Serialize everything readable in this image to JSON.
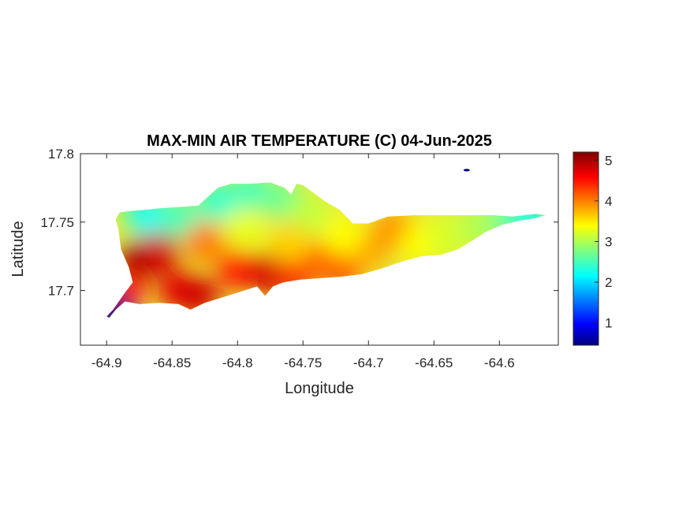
{
  "chart_data": {
    "type": "heatmap",
    "title": "MAX-MIN AIR TEMPERATURE (C) 04-Jun-2025",
    "xlabel": "Longitude",
    "ylabel": "Latitude",
    "xlim": [
      -64.92,
      -64.555
    ],
    "ylim": [
      17.66,
      17.8
    ],
    "xticks": [
      -64.9,
      -64.85,
      -64.8,
      -64.75,
      -64.7,
      -64.65,
      -64.6
    ],
    "xtick_labels": [
      "-64.9",
      "-64.85",
      "-64.8",
      "-64.75",
      "-64.7",
      "-64.65",
      "-64.6"
    ],
    "yticks": [
      17.7,
      17.75,
      17.8
    ],
    "ytick_labels": [
      "17.7",
      "17.75",
      "17.8"
    ],
    "colormap": "jet",
    "colorbar": {
      "min": 0.45,
      "max": 5.2,
      "ticks": [
        1,
        2,
        3,
        4,
        5
      ],
      "tick_labels": [
        "1",
        "2",
        "3",
        "4",
        "5"
      ]
    },
    "island_outline": [
      [
        -64.898,
        17.68
      ],
      [
        -64.893,
        17.686
      ],
      [
        -64.886,
        17.692
      ],
      [
        -64.875,
        17.69
      ],
      [
        -64.86,
        17.691
      ],
      [
        -64.845,
        17.69
      ],
      [
        -64.836,
        17.686
      ],
      [
        -64.825,
        17.691
      ],
      [
        -64.808,
        17.696
      ],
      [
        -64.795,
        17.7
      ],
      [
        -64.785,
        17.703
      ],
      [
        -64.779,
        17.696
      ],
      [
        -64.773,
        17.703
      ],
      [
        -64.765,
        17.706
      ],
      [
        -64.752,
        17.708
      ],
      [
        -64.738,
        17.709
      ],
      [
        -64.722,
        17.71
      ],
      [
        -64.705,
        17.712
      ],
      [
        -64.69,
        17.716
      ],
      [
        -64.675,
        17.721
      ],
      [
        -64.66,
        17.725
      ],
      [
        -64.645,
        17.726
      ],
      [
        -64.632,
        17.73
      ],
      [
        -64.62,
        17.737
      ],
      [
        -64.61,
        17.743
      ],
      [
        -64.598,
        17.748
      ],
      [
        -64.585,
        17.751
      ],
      [
        -64.572,
        17.753
      ],
      [
        -64.565,
        17.755
      ],
      [
        -64.572,
        17.756
      ],
      [
        -64.59,
        17.754
      ],
      [
        -64.605,
        17.755
      ],
      [
        -64.625,
        17.755
      ],
      [
        -64.645,
        17.755
      ],
      [
        -64.665,
        17.755
      ],
      [
        -64.685,
        17.754
      ],
      [
        -64.7,
        17.749
      ],
      [
        -64.712,
        17.749
      ],
      [
        -64.722,
        17.759
      ],
      [
        -64.733,
        17.765
      ],
      [
        -64.743,
        17.772
      ],
      [
        -64.75,
        17.777
      ],
      [
        -64.755,
        17.778
      ],
      [
        -64.759,
        17.77
      ],
      [
        -64.764,
        17.775
      ],
      [
        -64.775,
        17.779
      ],
      [
        -64.79,
        17.778
      ],
      [
        -64.805,
        17.778
      ],
      [
        -64.815,
        17.775
      ],
      [
        -64.83,
        17.762
      ],
      [
        -64.845,
        17.761
      ],
      [
        -64.86,
        17.76
      ],
      [
        -64.87,
        17.759
      ],
      [
        -64.883,
        17.758
      ],
      [
        -64.89,
        17.757
      ],
      [
        -64.893,
        17.752
      ],
      [
        -64.891,
        17.745
      ],
      [
        -64.889,
        17.73
      ],
      [
        -64.883,
        17.717
      ],
      [
        -64.88,
        17.706
      ],
      [
        -64.887,
        17.697
      ],
      [
        -64.895,
        17.686
      ],
      [
        -64.9,
        17.681
      ]
    ],
    "temperature_points": [
      {
        "lon": -64.875,
        "lat": 17.722,
        "value": 5.1
      },
      {
        "lon": -64.86,
        "lat": 17.728,
        "value": 4.8
      },
      {
        "lon": -64.845,
        "lat": 17.7,
        "value": 4.7
      },
      {
        "lon": -64.83,
        "lat": 17.696,
        "value": 4.8
      },
      {
        "lon": -64.885,
        "lat": 17.7,
        "value": 4.4
      },
      {
        "lon": -64.8,
        "lat": 17.715,
        "value": 4.5
      },
      {
        "lon": -64.775,
        "lat": 17.712,
        "value": 4.8
      },
      {
        "lon": -64.755,
        "lat": 17.713,
        "value": 4.6
      },
      {
        "lon": -64.735,
        "lat": 17.722,
        "value": 4.1
      },
      {
        "lon": -64.72,
        "lat": 17.716,
        "value": 4.2
      },
      {
        "lon": -64.7,
        "lat": 17.73,
        "value": 3.8
      },
      {
        "lon": -64.68,
        "lat": 17.745,
        "value": 3.9
      },
      {
        "lon": -64.66,
        "lat": 17.735,
        "value": 3.4
      },
      {
        "lon": -64.64,
        "lat": 17.74,
        "value": 3.2
      },
      {
        "lon": -64.615,
        "lat": 17.747,
        "value": 3.0
      },
      {
        "lon": -64.59,
        "lat": 17.752,
        "value": 2.6
      },
      {
        "lon": -64.575,
        "lat": 17.754,
        "value": 2.3
      },
      {
        "lon": -64.87,
        "lat": 17.755,
        "value": 2.2
      },
      {
        "lon": -64.845,
        "lat": 17.753,
        "value": 2.5
      },
      {
        "lon": -64.815,
        "lat": 17.765,
        "value": 2.4
      },
      {
        "lon": -64.79,
        "lat": 17.772,
        "value": 2.5
      },
      {
        "lon": -64.765,
        "lat": 17.767,
        "value": 2.7
      },
      {
        "lon": -64.745,
        "lat": 17.756,
        "value": 3.1
      },
      {
        "lon": -64.795,
        "lat": 17.745,
        "value": 3.3
      },
      {
        "lon": -64.895,
        "lat": 17.683,
        "value": 0.5
      },
      {
        "lon": -64.76,
        "lat": 17.735,
        "value": 3.6
      },
      {
        "lon": -64.72,
        "lat": 17.74,
        "value": 3.4
      },
      {
        "lon": -64.825,
        "lat": 17.735,
        "value": 4.0
      }
    ],
    "islet_points": [
      {
        "lon": -64.625,
        "lat": 17.788,
        "value": 0.5
      }
    ]
  }
}
